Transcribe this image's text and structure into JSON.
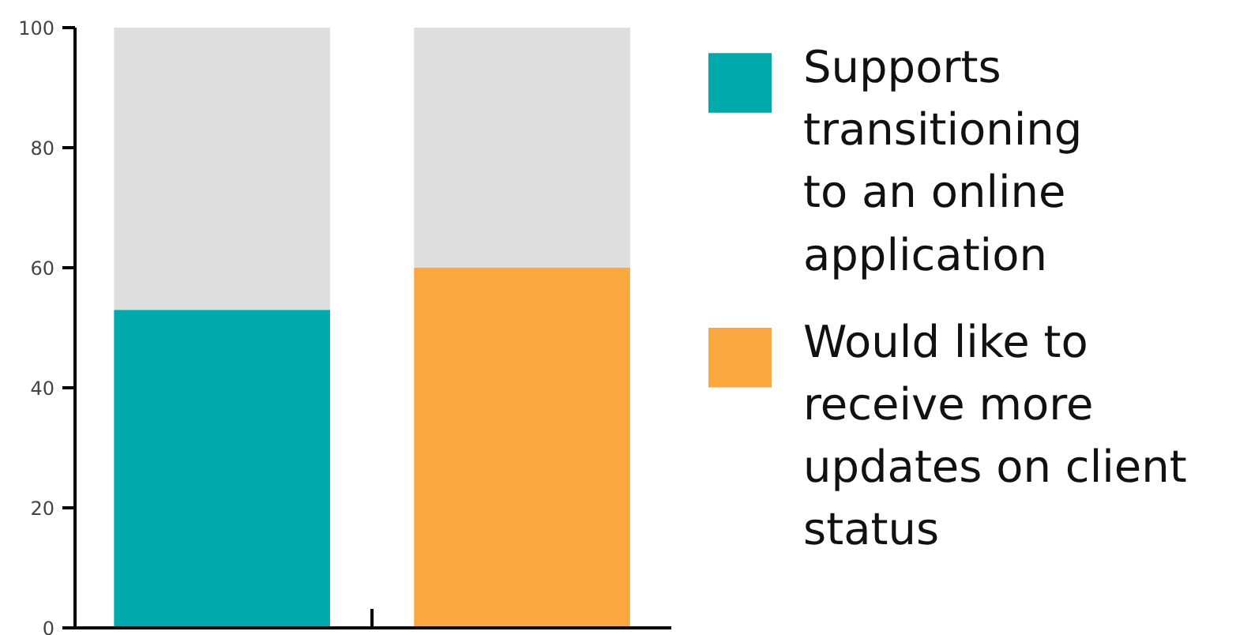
{
  "chart_data": {
    "type": "bar",
    "stacked": true,
    "categories": [
      null,
      null
    ],
    "series": [
      {
        "name": "Supports\ntransitioning\nto an online\napplication",
        "color": "#00a9ac",
        "values": [
          53,
          null
        ]
      },
      {
        "name": "Would like to\nreceive more\nupdates on client\nstatus",
        "color": "#f9a73e",
        "values": [
          null,
          60
        ]
      },
      {
        "color": "#dedede",
        "values": [
          47,
          40
        ]
      }
    ],
    "ylim": [
      0,
      100
    ],
    "yticks": [
      0,
      20,
      40,
      60,
      80,
      100
    ],
    "legend": "right"
  }
}
